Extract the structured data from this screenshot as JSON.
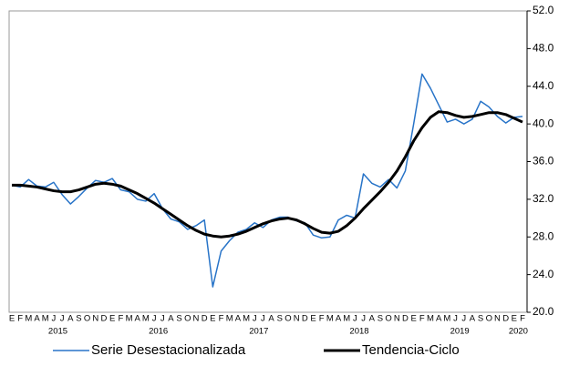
{
  "chart_data": {
    "type": "line",
    "categories": [
      "E",
      "F",
      "M",
      "A",
      "M",
      "J",
      "J",
      "A",
      "S",
      "O",
      "N",
      "D",
      "E",
      "F",
      "M",
      "A",
      "M",
      "J",
      "J",
      "A",
      "S",
      "O",
      "N",
      "D",
      "E",
      "F",
      "M",
      "A",
      "M",
      "J",
      "J",
      "A",
      "S",
      "O",
      "N",
      "D",
      "E",
      "F",
      "M",
      "A",
      "M",
      "J",
      "J",
      "A",
      "S",
      "O",
      "N",
      "D",
      "E",
      "F",
      "M",
      "A",
      "M",
      "J",
      "J",
      "A",
      "S",
      "O",
      "N",
      "D",
      "E",
      "F"
    ],
    "years": [
      "2015",
      "2016",
      "2017",
      "2018",
      "2019",
      "2020"
    ],
    "series": [
      {
        "name": "Serie Desestacionalizada",
        "color": "#2874c8",
        "values": [
          33.5,
          33.3,
          34.1,
          33.4,
          33.3,
          33.8,
          32.5,
          31.5,
          32.3,
          33.2,
          34.0,
          33.8,
          34.2,
          33.0,
          32.8,
          32.0,
          31.8,
          32.6,
          31.0,
          29.9,
          29.6,
          28.8,
          29.2,
          29.8,
          22.7,
          26.5,
          27.6,
          28.5,
          28.8,
          29.5,
          29.0,
          29.8,
          30.1,
          30.1,
          29.7,
          29.5,
          28.2,
          27.9,
          28.0,
          29.8,
          30.3,
          30.0,
          34.7,
          33.7,
          33.3,
          34.1,
          33.2,
          35.0,
          40.0,
          45.3,
          43.8,
          42.0,
          40.2,
          40.5,
          40.0,
          40.5,
          42.4,
          41.8,
          40.8,
          40.1,
          40.7,
          40.8
        ]
      },
      {
        "name": "Tendencia-Ciclo",
        "color": "#000000",
        "values": [
          33.5,
          33.5,
          33.4,
          33.3,
          33.1,
          32.9,
          32.8,
          32.8,
          33.0,
          33.3,
          33.6,
          33.7,
          33.6,
          33.4,
          33.0,
          32.6,
          32.1,
          31.6,
          31.0,
          30.4,
          29.8,
          29.2,
          28.7,
          28.3,
          28.1,
          28.0,
          28.1,
          28.3,
          28.6,
          29.0,
          29.4,
          29.7,
          29.9,
          30.0,
          29.8,
          29.4,
          28.9,
          28.5,
          28.4,
          28.6,
          29.2,
          30.0,
          31.0,
          31.9,
          32.8,
          33.8,
          35.0,
          36.5,
          38.2,
          39.6,
          40.7,
          41.3,
          41.2,
          40.9,
          40.7,
          40.8,
          41.0,
          41.2,
          41.2,
          41.0,
          40.6,
          40.2
        ]
      }
    ],
    "ylim": [
      20,
      52
    ],
    "yticks": [
      {
        "value": 20,
        "label": "20.0"
      },
      {
        "value": 24,
        "label": "24.0"
      },
      {
        "value": 28,
        "label": "28.0"
      },
      {
        "value": 32,
        "label": "32.0"
      },
      {
        "value": 36,
        "label": "36.0"
      },
      {
        "value": 40,
        "label": "40.0"
      },
      {
        "value": 44,
        "label": "44.0"
      },
      {
        "value": 48,
        "label": "48.0"
      },
      {
        "value": 52,
        "label": "52.0"
      }
    ],
    "grid": false,
    "legend": "bottom"
  }
}
